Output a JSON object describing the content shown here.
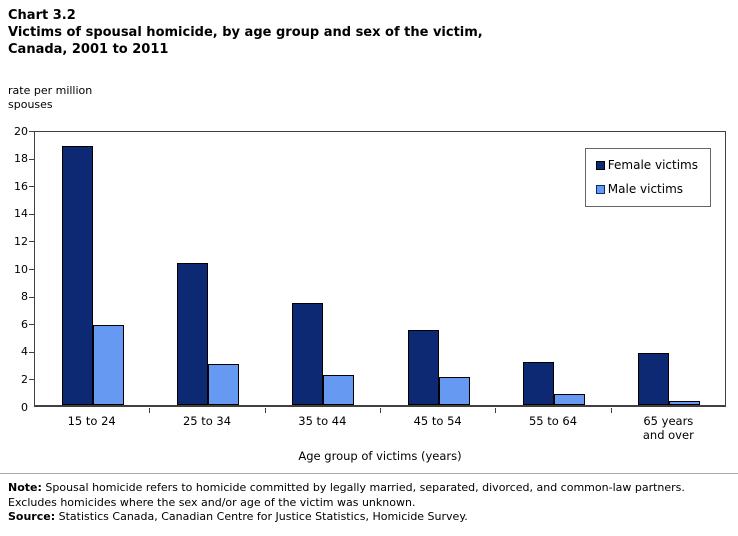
{
  "header": {
    "chart_number": "Chart 3.2",
    "title": "Victims of spousal homicide, by age group and sex of the victim, Canada, 2001 to 2011"
  },
  "y_axis_unit": "rate per million\nspouses",
  "chart_data": {
    "type": "bar",
    "title": "Victims of spousal homicide, by age group and sex of the victim, Canada, 2001 to 2011",
    "categories": [
      "15 to 24",
      "25 to 34",
      "35 to 44",
      "45 to 54",
      "55 to 64",
      "65 years\nand over"
    ],
    "series": [
      {
        "name": "Female victims",
        "color": "#0e2973",
        "values": [
          18.8,
          10.3,
          7.4,
          5.4,
          3.1,
          3.8
        ]
      },
      {
        "name": "Male victims",
        "color": "#6699f2",
        "values": [
          5.8,
          3.0,
          2.2,
          2.0,
          0.8,
          0.3
        ]
      }
    ],
    "xlabel": "Age group of victims (years)",
    "ylabel": "rate per million spouses",
    "ylim": [
      0,
      20
    ],
    "ytick_step": 2,
    "grid": false,
    "legend_position": "top-right-inside"
  },
  "footer": {
    "note_label": "Note:",
    "note_text": " Spousal homicide refers to homicide committed by legally married, separated, divorced, and common-law partners. Excludes homicides where the sex and/or age of the victim was unknown.",
    "source_label": "Source:",
    "source_text": " Statistics Canada, Canadian Centre for Justice Statistics, Homicide Survey."
  }
}
